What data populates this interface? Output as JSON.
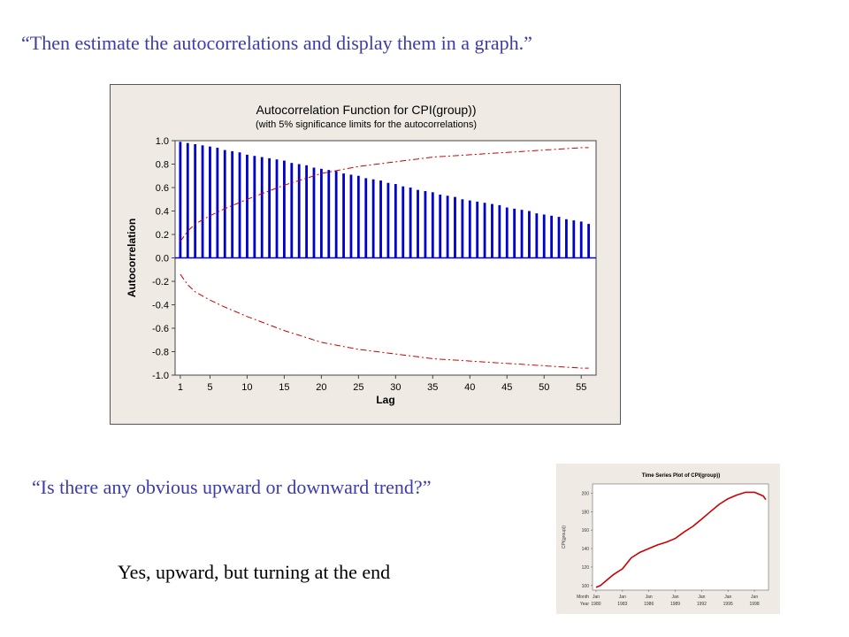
{
  "slide": {
    "question1": "“Then estimate the autocorrelations and display them in a graph.”",
    "question2": "“Is there any obvious upward or downward trend?”",
    "answer": "Yes, upward, but turning at the end"
  },
  "colors": {
    "question_text": "#3c3caa",
    "bars": "#0000cc",
    "limits": "#cc0000",
    "panel_bg": "#efebe4"
  },
  "chart_data": [
    {
      "type": "bar",
      "title": "Autocorrelation Function for CPI(group))",
      "subtitle": "(with 5% significance limits for the autocorrelations)",
      "xlabel": "Lag",
      "ylabel": "Autocorrelation",
      "ylim": [
        -1.0,
        1.0
      ],
      "yticks": [
        "1.0",
        "0.8",
        "0.6",
        "0.4",
        "0.2",
        "0.0",
        "-0.2",
        "-0.4",
        "-0.6",
        "-0.8",
        "-1.0"
      ],
      "xticks": [
        "1",
        "5",
        "10",
        "15",
        "20",
        "25",
        "30",
        "35",
        "40",
        "45",
        "50",
        "55"
      ],
      "lags": [
        1,
        2,
        3,
        4,
        5,
        6,
        7,
        8,
        9,
        10,
        11,
        12,
        13,
        14,
        15,
        16,
        17,
        18,
        19,
        20,
        21,
        22,
        23,
        24,
        25,
        26,
        27,
        28,
        29,
        30,
        31,
        32,
        33,
        34,
        35,
        36,
        37,
        38,
        39,
        40,
        41,
        42,
        43,
        44,
        45,
        46,
        47,
        48,
        49,
        50,
        51,
        52,
        53,
        54,
        55,
        56
      ],
      "values": [
        0.99,
        0.98,
        0.97,
        0.96,
        0.95,
        0.94,
        0.92,
        0.91,
        0.9,
        0.88,
        0.87,
        0.86,
        0.85,
        0.84,
        0.83,
        0.81,
        0.8,
        0.79,
        0.77,
        0.76,
        0.75,
        0.74,
        0.72,
        0.71,
        0.7,
        0.68,
        0.67,
        0.66,
        0.64,
        0.63,
        0.61,
        0.6,
        0.58,
        0.57,
        0.56,
        0.54,
        0.53,
        0.52,
        0.5,
        0.49,
        0.48,
        0.47,
        0.46,
        0.45,
        0.43,
        0.42,
        0.41,
        0.4,
        0.38,
        0.37,
        0.36,
        0.35,
        0.33,
        0.32,
        0.31,
        0.29
      ],
      "significance_limits": {
        "lags": [
          1,
          2,
          3,
          5,
          7,
          10,
          15,
          20,
          25,
          30,
          35,
          40,
          45,
          50,
          55
        ],
        "upper": [
          0.14,
          0.23,
          0.29,
          0.36,
          0.42,
          0.5,
          0.62,
          0.72,
          0.78,
          0.82,
          0.86,
          0.88,
          0.9,
          0.92,
          0.94
        ],
        "lower": [
          -0.14,
          -0.23,
          -0.29,
          -0.36,
          -0.42,
          -0.5,
          -0.62,
          -0.72,
          -0.78,
          -0.82,
          -0.86,
          -0.88,
          -0.9,
          -0.92,
          -0.94
        ]
      },
      "grid": false,
      "legend": "none"
    },
    {
      "type": "line",
      "title": "Time Series Plot of CPI(group))",
      "ylabel": "CPI(group))",
      "ylim": [
        95,
        210
      ],
      "yticks": [
        "100",
        "120",
        "140",
        "160",
        "180",
        "200"
      ],
      "x_rows": [
        {
          "label": "Month",
          "values": [
            "Jan",
            "Jan",
            "Jan",
            "Jan",
            "Jan",
            "Jan",
            "Jan"
          ]
        },
        {
          "label": "Year",
          "values": [
            "1980",
            "1983",
            "1986",
            "1989",
            "1992",
            "1995",
            "1998"
          ]
        }
      ],
      "x": [
        1980.0,
        1980.5,
        1981.0,
        1981.5,
        1982.0,
        1982.5,
        1983.0,
        1983.5,
        1984.0,
        1985.0,
        1986.0,
        1987.0,
        1988.0,
        1989.0,
        1990.0,
        1991.0,
        1992.0,
        1993.0,
        1994.0,
        1995.0,
        1996.0,
        1997.0,
        1998.0,
        1998.5,
        1999.0,
        1999.3
      ],
      "values": [
        98,
        100,
        104,
        108,
        112,
        115,
        118,
        124,
        130,
        136,
        140,
        144,
        147,
        151,
        158,
        164,
        172,
        180,
        188,
        194,
        198,
        201,
        201,
        199,
        197,
        193
      ],
      "series_color": "#cc0000"
    }
  ]
}
